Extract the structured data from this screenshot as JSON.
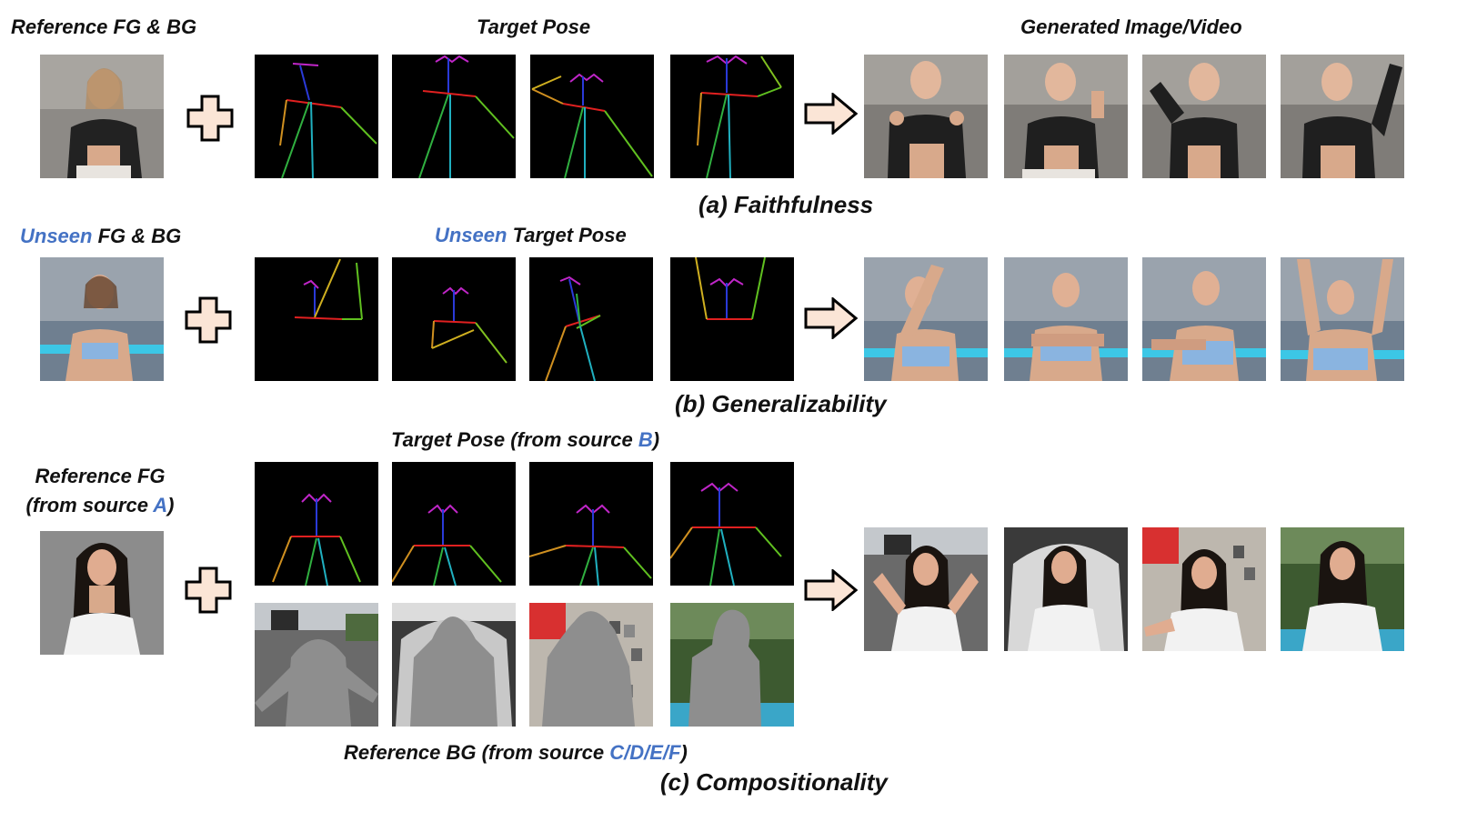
{
  "figure": {
    "header": {
      "ref_fg_bg": "Reference FG & BG",
      "target_pose": "Target Pose",
      "generated": "Generated Image/Video"
    },
    "row_a": {
      "caption": "(a) Faithfulness"
    },
    "row_b": {
      "unseen_1": "Unseen",
      "fg_bg": " FG & BG",
      "unseen_2": "Unseen",
      "target_pose": " Target Pose",
      "caption": "(b) Generalizability"
    },
    "row_c": {
      "target_pose_prefix": "Target Pose (from source ",
      "target_pose_src": "B",
      "target_pose_suffix": ")",
      "ref_fg_line1": "Reference FG",
      "ref_fg_line2_prefix": "(from source ",
      "ref_fg_line2_src": "A",
      "ref_fg_line2_suffix": ")",
      "ref_bg_prefix": "Reference BG (from source ",
      "ref_bg_src": "C/D/E/F",
      "ref_bg_suffix": ")",
      "caption": "(c) Compositionality"
    },
    "colors": {
      "highlight": "#4472c4",
      "plus_fill": "#fbe5d6",
      "pose_bg": "#000000"
    },
    "icons": [
      "plus-icon",
      "right-arrow-icon"
    ]
  }
}
